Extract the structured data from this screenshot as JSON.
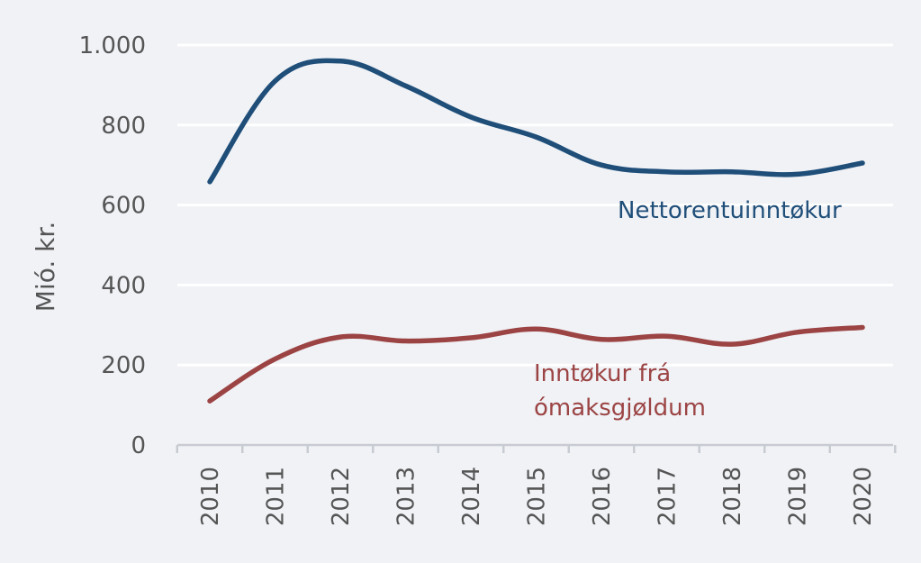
{
  "chart_data": {
    "type": "line",
    "ylabel": "Mió. kr.",
    "xlabel": "",
    "x": [
      "2010",
      "2011",
      "2012",
      "2013",
      "2014",
      "2015",
      "2016",
      "2017",
      "2018",
      "2019",
      "2020"
    ],
    "ylim": [
      0,
      1000
    ],
    "yticks": [
      0,
      200,
      400,
      600,
      800,
      1000
    ],
    "ytick_labels": [
      "0",
      "200",
      "400",
      "600",
      "800",
      "1.000"
    ],
    "grid": true,
    "series": [
      {
        "name": "Nettorentuinntøkur",
        "color": "#1f4e79",
        "values": [
          658,
          910,
          960,
          898,
          820,
          770,
          700,
          683,
          683,
          677,
          705
        ]
      },
      {
        "name_lines": [
          "Inntøkur frá",
          "ómaksgjøldum"
        ],
        "color": "#9c4444",
        "values": [
          110,
          215,
          270,
          260,
          268,
          290,
          264,
          272,
          252,
          282,
          294
        ]
      }
    ]
  }
}
